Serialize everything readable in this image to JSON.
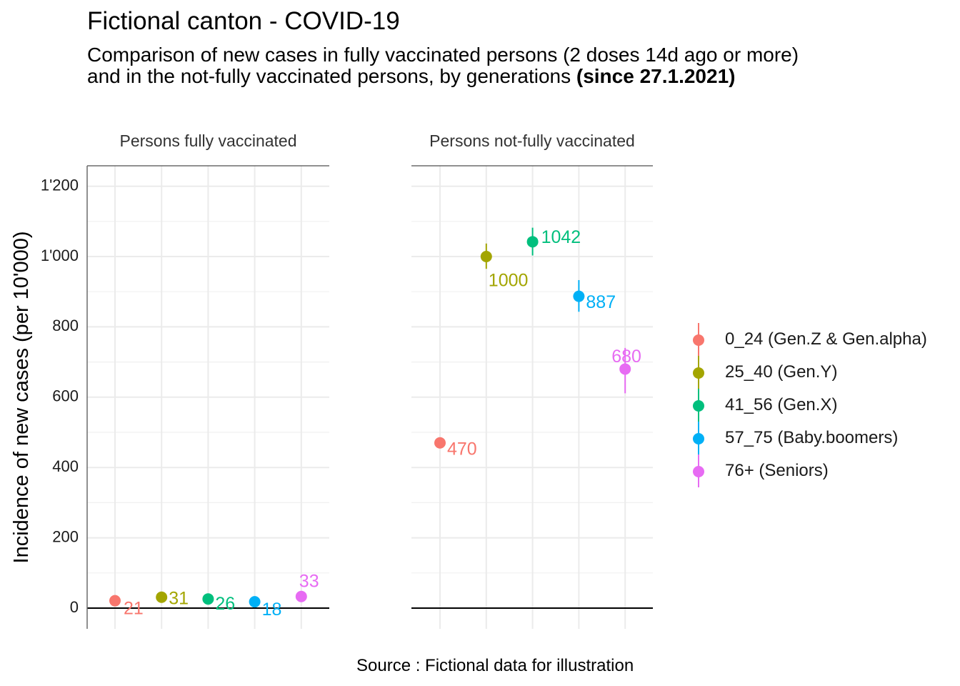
{
  "title": "Fictional canton - COVID-19",
  "subtitle": {
    "line1": "Comparison of new cases in fully vaccinated persons (2 doses 14d ago or more)",
    "line2_prefix": "and in the not-fully vaccinated persons, by generations ",
    "line2_bold": "(since 27.1.2021)"
  },
  "caption": "Source : Fictional data for illustration",
  "chart_data": {
    "type": "scatter",
    "title": "Fictional canton - COVID-19",
    "ylabel": "Incidence of new cases (per 10'000)",
    "xlabel": "",
    "ylim": [
      -55,
      1265
    ],
    "yticks": [
      0,
      200,
      400,
      600,
      800,
      1000,
      1200
    ],
    "ytick_labels": [
      "0",
      "200",
      "400",
      "600",
      "800",
      "1'000",
      "1'200"
    ],
    "legend_position": "right",
    "groups": [
      {
        "name": "0_24 (Gen.Z & Gen.alpha)",
        "color": "#F8766D"
      },
      {
        "name": "25_40 (Gen.Y)",
        "color": "#A3A500"
      },
      {
        "name": "41_56 (Gen.X)",
        "color": "#00BF7D"
      },
      {
        "name": "57_75 (Baby.boomers)",
        "color": "#00B0F6"
      },
      {
        "name": "76+ (Seniors)",
        "color": "#E76BF3"
      }
    ],
    "panels": [
      {
        "title": "Persons fully vaccinated",
        "series": [
          {
            "group": "0_24 (Gen.Z & Gen.alpha)",
            "value": 21,
            "label": "21",
            "ci": [
              17,
              25
            ]
          },
          {
            "group": "25_40 (Gen.Y)",
            "value": 31,
            "label": "31",
            "ci": [
              27,
              35
            ]
          },
          {
            "group": "41_56 (Gen.X)",
            "value": 26,
            "label": "26",
            "ci": [
              22,
              30
            ]
          },
          {
            "group": "57_75 (Baby.boomers)",
            "value": 18,
            "label": "18",
            "ci": [
              14,
              22
            ]
          },
          {
            "group": "76+ (Seniors)",
            "value": 33,
            "label": "33",
            "ci": [
              25,
              41
            ]
          }
        ]
      },
      {
        "title": "Persons not-fully vaccinated",
        "series": [
          {
            "group": "0_24 (Gen.Z & Gen.alpha)",
            "value": 470,
            "label": "470",
            "ci": [
              458,
              482
            ]
          },
          {
            "group": "25_40 (Gen.Y)",
            "value": 1000,
            "label": "1000",
            "ci": [
              965,
              1037
            ]
          },
          {
            "group": "41_56 (Gen.X)",
            "value": 1042,
            "label": "1042",
            "ci": [
              1003,
              1082
            ]
          },
          {
            "group": "57_75 (Baby.boomers)",
            "value": 887,
            "label": "887",
            "ci": [
              843,
              933
            ]
          },
          {
            "group": "76+ (Seniors)",
            "value": 680,
            "label": "680",
            "ci": [
              611,
              740
            ]
          }
        ]
      }
    ]
  }
}
